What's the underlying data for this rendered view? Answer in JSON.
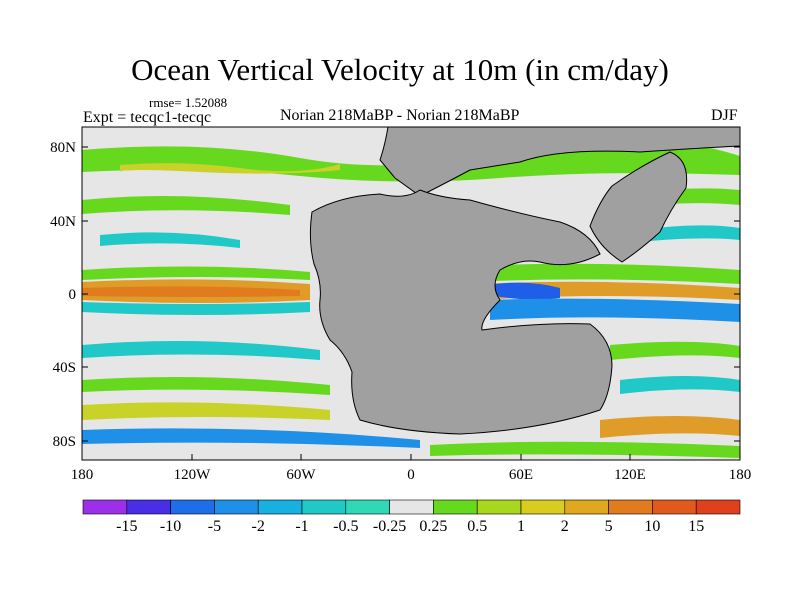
{
  "title": "Ocean Vertical Velocity at 10m (in cm/day)",
  "rmse_label": "rmse= 1.52088",
  "expt_label": "Expt = tecqc1-tecqc",
  "subtitle": "Norian 218MaBP - Norian 218MaBP",
  "season": "DJF",
  "lat_ticks": [
    "80N",
    "40N",
    "0",
    "40S",
    "80S"
  ],
  "lon_ticks": [
    "180",
    "120W",
    "60W",
    "0",
    "60E",
    "120E",
    "180"
  ],
  "colorbar": {
    "labels": [
      "-15",
      "-10",
      "-5",
      "-2",
      "-1",
      "-0.5",
      "-0.25",
      "0.25",
      "0.5",
      "1",
      "2",
      "5",
      "10",
      "15"
    ],
    "colors": [
      "#9b30e8",
      "#4a2ee6",
      "#1e6ee8",
      "#1e90e8",
      "#18b0e0",
      "#20c8c8",
      "#30d8b8",
      "#e6e6e6",
      "#66d81e",
      "#a8d81e",
      "#d8cc1e",
      "#e0a81e",
      "#e07c1e",
      "#e05a1e",
      "#e0401e"
    ]
  },
  "colors": {
    "land": "#a0a0a0",
    "ocean_neutral": "#e6e6e6",
    "green": "#66d81e",
    "yellow": "#c8d228",
    "orange": "#e09c28",
    "cyan": "#20c8c8",
    "blue": "#1e90e8",
    "deep_blue": "#1e5ee8"
  }
}
